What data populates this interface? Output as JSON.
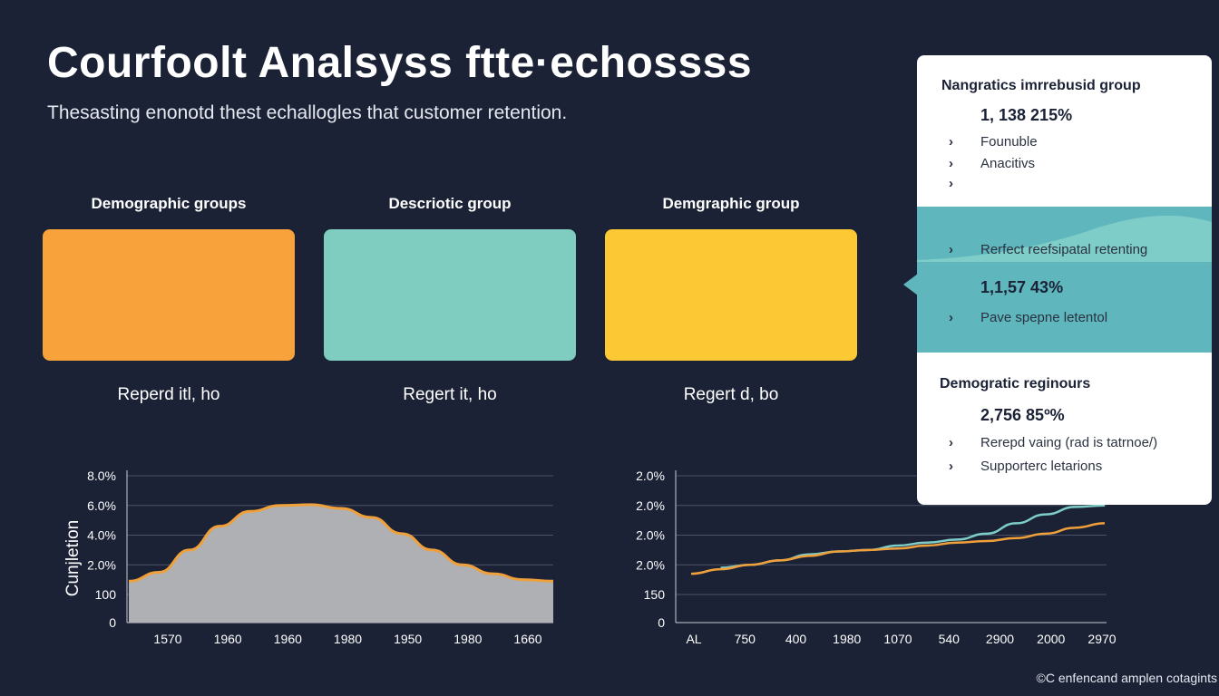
{
  "header": {
    "title": "Courfoolt Analsyss ftte·echossss",
    "subtitle": "Thesasting enonotd thest echallogles that customer retention."
  },
  "groups": [
    {
      "header": "Demographic groups",
      "footer": "Reperd itl, ho",
      "color": "#f7a23a"
    },
    {
      "header": "Descriotic group",
      "footer": "Regert it, ho",
      "color": "#7ecdc0"
    },
    {
      "header": "Demgraphic group",
      "footer": "Regert d, bo",
      "color": "#fcc834"
    }
  ],
  "panel": {
    "section1": {
      "heading": "Nangratics imrrebusid group",
      "value": "1, 138 215%",
      "items": [
        "Founuble",
        "Anacitivs",
        ""
      ]
    },
    "section2": {
      "items": [
        "Rerfect reefsipatal retenting",
        "Pave spepne letentol"
      ],
      "value": "1,1,57 43%"
    },
    "section3": {
      "heading": "Demogratic reginours",
      "value": "2,756 85º%",
      "items": [
        "Rerepd vaing (rad is tatrnoe/)",
        "Supporterc letarions"
      ]
    },
    "accent_color": "#5fb7bd"
  },
  "footer": "©C enfencand amplen cotagints",
  "chart_data": [
    {
      "type": "area",
      "ylabel": "Cunjletion",
      "y_ticks": [
        "8.0%",
        "6.0%",
        "4.0%",
        "2.0%",
        "100",
        "0"
      ],
      "x_ticks": [
        "1570",
        "1960",
        "1960",
        "1980",
        "1950",
        "1980",
        "1660"
      ],
      "series": [
        {
          "values": [
            0.9,
            1.5,
            3.0,
            4.6,
            5.6,
            6.0,
            6.05,
            5.8,
            5.2,
            4.1,
            3.0,
            2.0,
            1.4,
            1.0,
            0.9
          ]
        }
      ],
      "grid": true,
      "area_color": "#aeb0b4",
      "line_color": "#f0a03a"
    },
    {
      "type": "line",
      "y_ticks": [
        "2.0%",
        "2.0%",
        "2.0%",
        "2.0%",
        "150",
        "0"
      ],
      "x_ticks": [
        "AL",
        "750",
        "400",
        "1980",
        "1070",
        "540",
        "2900",
        "2000",
        "2970"
      ],
      "series": [
        {
          "color": "#7ecdc8",
          "values": [
            null,
            0.9,
            1.0,
            1.15,
            1.35,
            1.45,
            1.5,
            1.65,
            1.75,
            1.85,
            2.05,
            2.4,
            2.7,
            2.95,
            3.0
          ]
        },
        {
          "color": "#f0a03a",
          "values": [
            0.7,
            0.85,
            1.0,
            1.15,
            1.3,
            1.45,
            1.5,
            1.55,
            1.65,
            1.75,
            1.8,
            1.9,
            2.05,
            2.25,
            2.4
          ]
        }
      ],
      "grid": true
    }
  ]
}
